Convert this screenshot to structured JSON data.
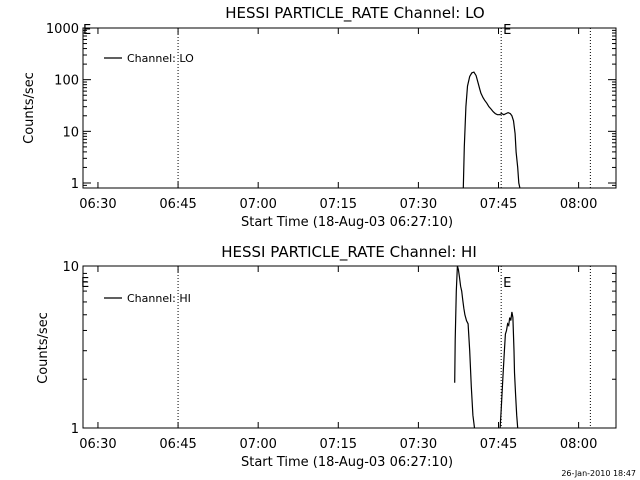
{
  "footer_timestamp": "26-Jan-2010 18:47",
  "chart_data": [
    {
      "type": "line",
      "title": "HESSI PARTICLE_RATE Channel: LO",
      "xlabel": "Start Time (18-Aug-03 06:27:10)",
      "ylabel": "Counts/sec",
      "yscale": "log",
      "xlim": [
        387.2,
        487.0
      ],
      "ylim": [
        0.8,
        1000
      ],
      "x_ticks": [
        {
          "value": 390,
          "label": "06:30"
        },
        {
          "value": 405,
          "label": "06:45"
        },
        {
          "value": 420,
          "label": "07:00"
        },
        {
          "value": 435,
          "label": "07:15"
        },
        {
          "value": 450,
          "label": "07:30"
        },
        {
          "value": 465,
          "label": "07:45"
        },
        {
          "value": 480,
          "label": "08:00"
        }
      ],
      "y_ticks": [
        {
          "value": 1,
          "label": "1"
        },
        {
          "value": 10,
          "label": "10"
        },
        {
          "value": 100,
          "label": "100"
        },
        {
          "value": 1000,
          "label": "1000"
        }
      ],
      "markers": [
        {
          "x": 405,
          "label": ""
        },
        {
          "x": 465.5,
          "label": "E"
        },
        {
          "x": 482.2,
          "label": ""
        }
      ],
      "left_marker": "E",
      "legend": {
        "position": "top-left",
        "entries": [
          "Channel: LO"
        ]
      },
      "series": [
        {
          "name": "Channel: LO",
          "x": [
            458.4,
            458.6,
            458.9,
            459.2,
            459.6,
            460.0,
            460.4,
            460.8,
            461.2,
            461.5,
            461.7,
            461.9,
            462.1,
            462.4,
            462.8,
            463.2,
            463.6,
            464.0,
            464.4,
            464.8,
            465.2,
            465.6,
            466.0,
            466.4,
            466.8,
            467.2,
            467.5,
            467.8,
            468.1,
            468.3,
            468.6,
            468.8,
            469.0
          ],
          "y": [
            0.8,
            5,
            30,
            75,
            115,
            135,
            140,
            120,
            85,
            65,
            55,
            50,
            45,
            40,
            35,
            30,
            27,
            24,
            22,
            21,
            21,
            22,
            21,
            22,
            23,
            22,
            20,
            16,
            9,
            4,
            2,
            1,
            0.8
          ]
        }
      ]
    },
    {
      "type": "line",
      "title": "HESSI PARTICLE_RATE Channel: HI",
      "xlabel": "Start Time (18-Aug-03 06:27:10)",
      "ylabel": "Counts/sec",
      "yscale": "log",
      "xlim": [
        387.2,
        487.0
      ],
      "ylim": [
        1,
        10
      ],
      "x_ticks": [
        {
          "value": 390,
          "label": "06:30"
        },
        {
          "value": 405,
          "label": "06:45"
        },
        {
          "value": 420,
          "label": "07:00"
        },
        {
          "value": 435,
          "label": "07:15"
        },
        {
          "value": 450,
          "label": "07:30"
        },
        {
          "value": 465,
          "label": "07:45"
        },
        {
          "value": 480,
          "label": "08:00"
        }
      ],
      "y_ticks": [
        {
          "value": 1,
          "label": "1"
        },
        {
          "value": 10,
          "label": "10"
        }
      ],
      "markers": [
        {
          "x": 405,
          "label": ""
        },
        {
          "x": 465.5,
          "label": "E"
        },
        {
          "x": 482.2,
          "label": ""
        }
      ],
      "left_marker": "E",
      "legend": {
        "position": "top-left",
        "entries": [
          "Channel: HI"
        ]
      },
      "series": [
        {
          "name": "Channel: HI",
          "segments": [
            {
              "x": [
                456.8,
                456.9,
                457.1,
                457.3,
                457.5,
                457.7,
                457.9,
                458.1,
                458.3,
                458.5,
                458.7,
                459.0,
                459.3,
                459.6,
                459.9,
                460.2,
                460.5
              ],
              "y": [
                1.9,
                3.5,
                7,
                10,
                9.5,
                8.5,
                7.5,
                7,
                6.2,
                5.5,
                5,
                4.6,
                4.4,
                3,
                1.8,
                1.2,
                1
              ]
            },
            {
              "x": [
                465.3,
                465.5,
                465.8,
                466.1,
                466.3,
                466.5,
                466.7,
                466.9,
                467.1,
                467.3,
                467.5,
                467.7,
                467.9,
                468.0,
                468.2,
                468.4,
                468.6
              ],
              "y": [
                1,
                1.3,
                2,
                3,
                3.8,
                4,
                4.4,
                4.3,
                4.8,
                4.6,
                5.2,
                4.8,
                3,
                2.2,
                1.6,
                1.2,
                1
              ]
            }
          ]
        }
      ]
    }
  ]
}
